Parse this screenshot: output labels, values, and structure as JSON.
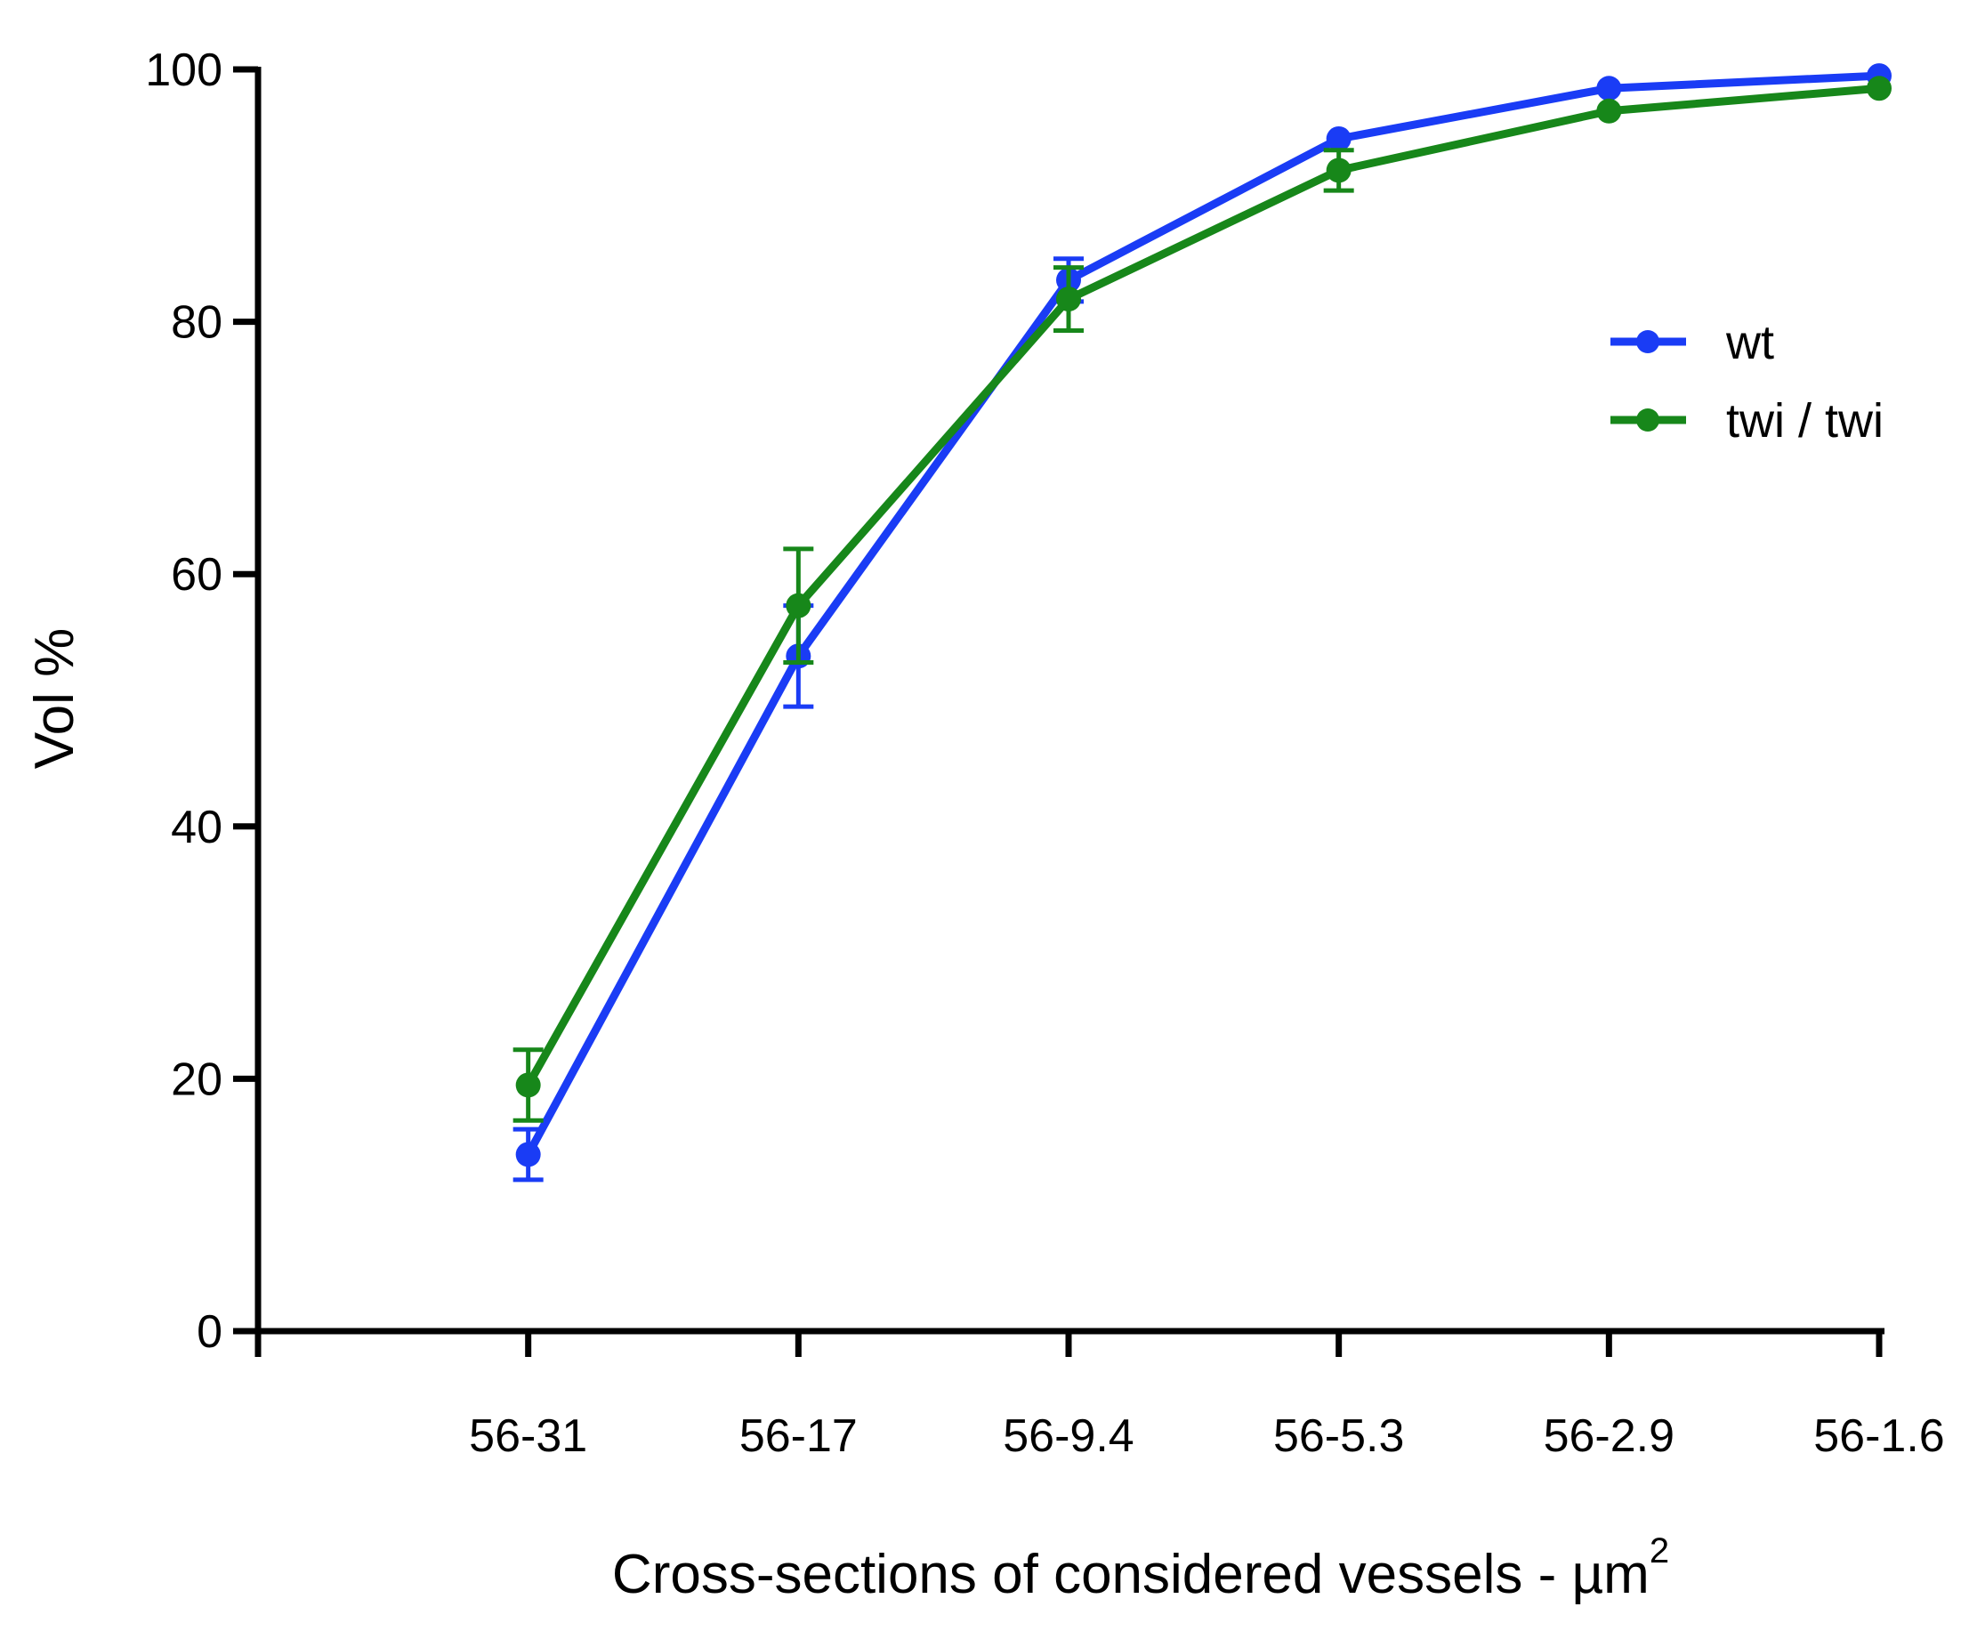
{
  "chart_data": {
    "type": "line",
    "title": "",
    "xlabel": "Cross-sections of considered vessels - µm",
    "xlabel_superscript": "2",
    "ylabel": "Vol %",
    "categories": [
      "",
      "56-31",
      "56-17",
      "56-9.4",
      "56-5.3",
      "56-2.9",
      "56-1.6"
    ],
    "ylim": [
      0,
      100
    ],
    "yticks": [
      "0",
      "20",
      "40",
      "60",
      "80",
      "100"
    ],
    "grid": false,
    "legend_position": "right",
    "series": [
      {
        "name": "wt",
        "color": "#1a3cf5",
        "values": [
          null,
          14,
          53.5,
          83.3,
          94.5,
          98.5,
          99.5
        ],
        "errors": [
          null,
          2.0,
          4.0,
          1.7,
          0,
          0,
          0
        ]
      },
      {
        "name": "twi / twi",
        "color": "#17871a",
        "values": [
          null,
          19.5,
          57.5,
          81.8,
          92,
          96.7,
          98.5
        ],
        "errors": [
          null,
          2.8,
          4.5,
          2.5,
          1.6,
          0,
          0
        ]
      }
    ]
  }
}
